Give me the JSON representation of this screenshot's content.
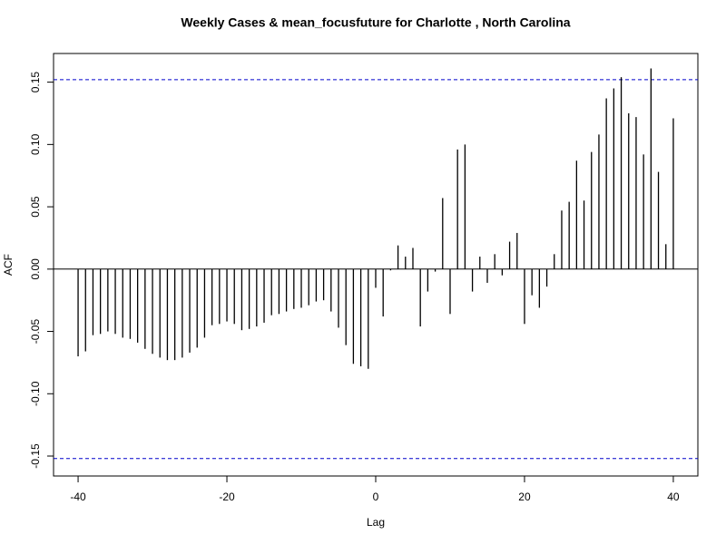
{
  "chart_data": {
    "type": "ccf",
    "title": "Weekly Cases & mean_focusfuture for Charlotte , North Carolina",
    "xlabel": "Lag",
    "ylabel": "ACF",
    "x": [
      -40,
      -39,
      -38,
      -37,
      -36,
      -35,
      -34,
      -33,
      -32,
      -31,
      -30,
      -29,
      -28,
      -27,
      -26,
      -25,
      -24,
      -23,
      -22,
      -21,
      -20,
      -19,
      -18,
      -17,
      -16,
      -15,
      -14,
      -13,
      -12,
      -11,
      -10,
      -9,
      -8,
      -7,
      -6,
      -5,
      -4,
      -3,
      -2,
      -1,
      0,
      1,
      2,
      3,
      4,
      5,
      6,
      7,
      8,
      9,
      10,
      11,
      12,
      13,
      14,
      15,
      16,
      17,
      18,
      19,
      20,
      21,
      22,
      23,
      24,
      25,
      26,
      27,
      28,
      29,
      30,
      31,
      32,
      33,
      34,
      35,
      36,
      37,
      38,
      39,
      40
    ],
    "values": [
      -0.07,
      -0.066,
      -0.053,
      -0.052,
      -0.05,
      -0.052,
      -0.055,
      -0.056,
      -0.059,
      -0.064,
      -0.068,
      -0.071,
      -0.073,
      -0.073,
      -0.071,
      -0.067,
      -0.063,
      -0.055,
      -0.045,
      -0.044,
      -0.042,
      -0.044,
      -0.049,
      -0.048,
      -0.046,
      -0.043,
      -0.037,
      -0.036,
      -0.034,
      -0.032,
      -0.031,
      -0.029,
      -0.026,
      -0.025,
      -0.034,
      -0.047,
      -0.061,
      -0.076,
      -0.078,
      -0.08,
      -0.015,
      -0.038,
      -0.001,
      0.019,
      0.01,
      0.017,
      -0.046,
      -0.018,
      -0.002,
      0.057,
      -0.036,
      0.096,
      0.1,
      -0.018,
      0.01,
      -0.011,
      0.012,
      -0.005,
      0.022,
      0.029,
      -0.044,
      -0.021,
      -0.031,
      -0.014,
      0.012,
      0.047,
      0.054,
      0.087,
      0.055,
      0.094,
      0.108,
      0.137,
      0.145,
      0.154,
      0.125,
      0.122,
      0.092,
      0.161,
      0.078,
      0.02,
      0.121
    ],
    "color": "#000000",
    "ci": [
      0.152,
      -0.152
    ],
    "ci_color": "#0000cc",
    "xlim": [
      -43.3,
      43.3
    ],
    "ylim": [
      -0.166,
      0.173
    ],
    "xticks": [
      -40,
      -20,
      0,
      20,
      40
    ],
    "yticks": [
      {
        "value": -0.15,
        "label": "-0.15"
      },
      {
        "value": -0.1,
        "label": "-0.10"
      },
      {
        "value": -0.05,
        "label": "-0.05"
      },
      {
        "value": 0,
        "label": "0.00"
      },
      {
        "value": 0.05,
        "label": "0.05"
      },
      {
        "value": 0.1,
        "label": "0.10"
      },
      {
        "value": 0.15,
        "label": "0.15"
      }
    ]
  }
}
